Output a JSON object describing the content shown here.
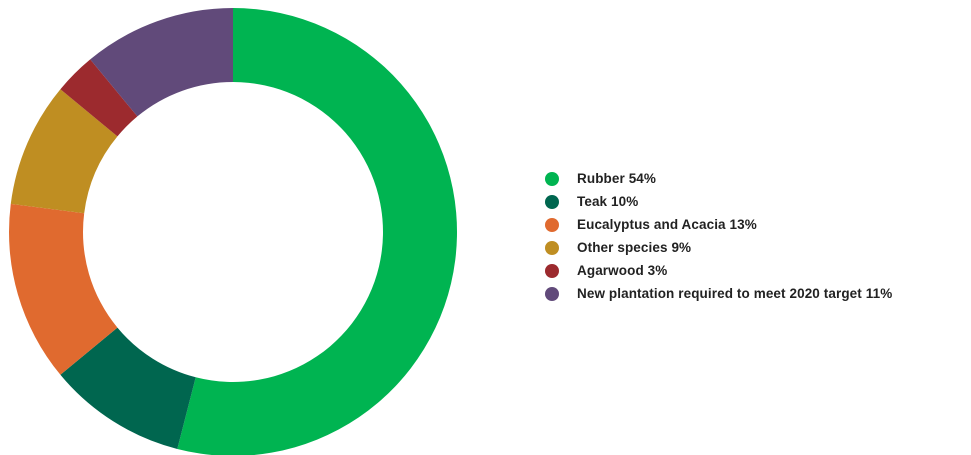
{
  "chart_data": {
    "type": "pie",
    "donut": true,
    "start_angle_deg": 0,
    "direction": "clockwise",
    "legend_position": "right",
    "title": "",
    "slices": [
      {
        "label": "Rubber 54%",
        "category": "Rubber",
        "value": 54,
        "color": "#00b451"
      },
      {
        "label": "Teak 10%",
        "category": "Teak",
        "value": 10,
        "color": "#00664f"
      },
      {
        "label": "Eucalyptus and Acacia 13%",
        "category": "Eucalyptus and Acacia",
        "value": 13,
        "color": "#e06a2f"
      },
      {
        "label": "Other species 9%",
        "category": "Other species",
        "value": 9,
        "color": "#bf8e22"
      },
      {
        "label": "Agarwood 3%",
        "category": "Agarwood",
        "value": 3,
        "color": "#9c2a2e"
      },
      {
        "label": "New plantation required to meet 2020 target 11%",
        "category": "New plantation required to meet 2020 target",
        "value": 11,
        "color": "#614a7a"
      }
    ]
  }
}
